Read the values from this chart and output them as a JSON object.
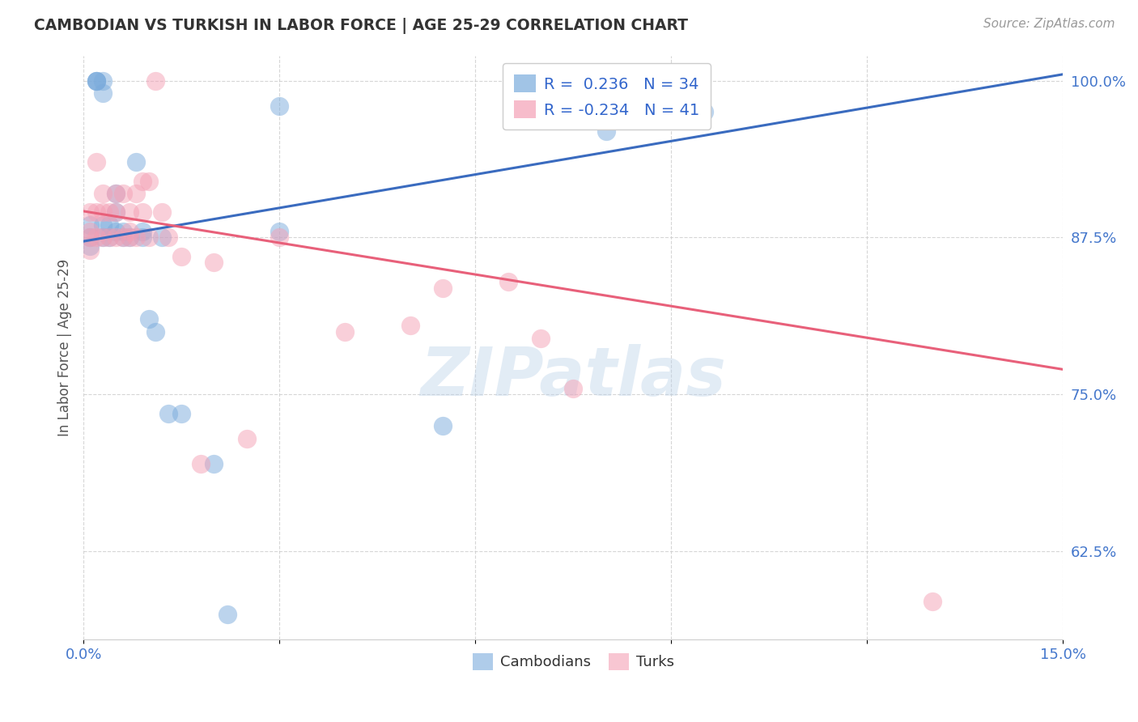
{
  "title": "CAMBODIAN VS TURKISH IN LABOR FORCE | AGE 25-29 CORRELATION CHART",
  "source": "Source: ZipAtlas.com",
  "ylabel": "In Labor Force | Age 25-29",
  "xlim": [
    0.0,
    0.15
  ],
  "ylim": [
    0.555,
    1.02
  ],
  "yticks": [
    0.625,
    0.75,
    0.875,
    1.0
  ],
  "ytick_labels": [
    "62.5%",
    "75.0%",
    "87.5%",
    "100.0%"
  ],
  "xticks": [
    0.0,
    0.03,
    0.06,
    0.09,
    0.12,
    0.15
  ],
  "xtick_labels": [
    "0.0%",
    "",
    "",
    "",
    "",
    "15.0%"
  ],
  "cambodian_R": 0.236,
  "cambodian_N": 34,
  "turkish_R": -0.234,
  "turkish_N": 41,
  "cambodian_color": "#7aabdc",
  "turkish_color": "#f4a0b5",
  "cambodian_line_color": "#3a6bbf",
  "turkish_line_color": "#e8607a",
  "watermark": "ZIPatlas",
  "cam_line_x0": 0.0,
  "cam_line_y0": 0.872,
  "cam_line_x1": 0.15,
  "cam_line_y1": 1.005,
  "tur_line_x0": 0.0,
  "tur_line_y0": 0.896,
  "tur_line_x1": 0.15,
  "tur_line_y1": 0.77,
  "cambodian_x": [
    0.001,
    0.001,
    0.001,
    0.002,
    0.002,
    0.002,
    0.003,
    0.003,
    0.003,
    0.003,
    0.004,
    0.004,
    0.005,
    0.005,
    0.005,
    0.006,
    0.006,
    0.007,
    0.008,
    0.009,
    0.009,
    0.01,
    0.011,
    0.012,
    0.013,
    0.015,
    0.02,
    0.022,
    0.03,
    0.03,
    0.055,
    0.08,
    0.085,
    0.095
  ],
  "cambodian_y": [
    0.885,
    0.875,
    0.868,
    1.0,
    1.0,
    1.0,
    1.0,
    0.99,
    0.885,
    0.875,
    0.885,
    0.875,
    0.91,
    0.895,
    0.88,
    0.88,
    0.875,
    0.875,
    0.935,
    0.88,
    0.875,
    0.81,
    0.8,
    0.875,
    0.735,
    0.735,
    0.695,
    0.575,
    0.88,
    0.98,
    0.725,
    0.96,
    0.975,
    0.975
  ],
  "turkish_x": [
    0.001,
    0.001,
    0.001,
    0.001,
    0.002,
    0.002,
    0.002,
    0.003,
    0.003,
    0.003,
    0.004,
    0.004,
    0.005,
    0.005,
    0.005,
    0.006,
    0.006,
    0.007,
    0.007,
    0.007,
    0.008,
    0.008,
    0.009,
    0.009,
    0.01,
    0.01,
    0.011,
    0.012,
    0.013,
    0.015,
    0.018,
    0.02,
    0.025,
    0.03,
    0.04,
    0.05,
    0.055,
    0.065,
    0.07,
    0.075,
    0.13
  ],
  "turkish_y": [
    0.895,
    0.88,
    0.875,
    0.865,
    0.935,
    0.895,
    0.875,
    0.91,
    0.895,
    0.875,
    0.895,
    0.875,
    0.91,
    0.895,
    0.875,
    0.91,
    0.875,
    0.895,
    0.88,
    0.875,
    0.91,
    0.875,
    0.92,
    0.895,
    0.92,
    0.875,
    1.0,
    0.895,
    0.875,
    0.86,
    0.695,
    0.855,
    0.715,
    0.875,
    0.8,
    0.805,
    0.835,
    0.84,
    0.795,
    0.755,
    0.585
  ]
}
